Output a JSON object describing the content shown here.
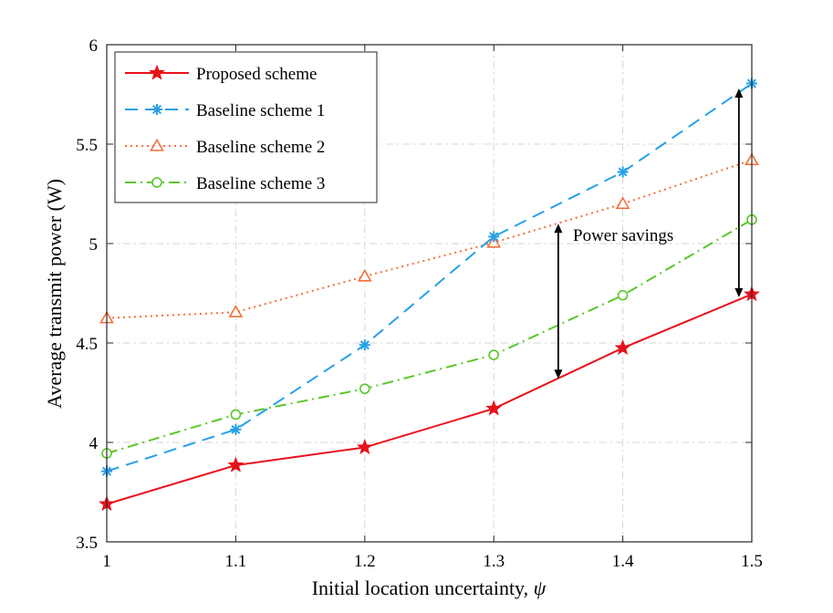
{
  "chart_data": {
    "type": "line",
    "title": "",
    "xlabel": "Initial location uncertainty, ",
    "xlabel_symbol": "ψ",
    "ylabel": "Average transmit power (W)",
    "x": [
      1,
      1.1,
      1.2,
      1.3,
      1.4,
      1.5
    ],
    "x_tick_labels": [
      "1",
      "1.1",
      "1.2",
      "1.3",
      "1.4",
      "1.5"
    ],
    "y_tick_labels": [
      "3.5",
      "4",
      "4.5",
      "5",
      "5.5",
      "6"
    ],
    "y_ticks": [
      3.5,
      4,
      4.5,
      5,
      5.5,
      6
    ],
    "xlim": [
      1,
      1.5
    ],
    "ylim": [
      3.5,
      6
    ],
    "grid": true,
    "legend_position": "top-left",
    "series": [
      {
        "name": "Proposed scheme",
        "values": [
          3.69,
          3.885,
          3.975,
          4.17,
          4.475,
          4.745
        ],
        "color": "#e8111a",
        "line": "solid",
        "marker": "star"
      },
      {
        "name": "Baseline scheme 1",
        "values": [
          3.855,
          4.065,
          4.49,
          5.035,
          5.36,
          5.805
        ],
        "color": "#26a0e8",
        "line": "dashed",
        "marker": "asterisk"
      },
      {
        "name": "Baseline scheme 2",
        "values": [
          4.625,
          4.655,
          4.835,
          5.005,
          5.2,
          5.42
        ],
        "color": "#f26f3c",
        "line": "dotted",
        "marker": "triangle"
      },
      {
        "name": "Baseline scheme 3",
        "values": [
          3.945,
          4.14,
          4.27,
          4.44,
          4.74,
          5.12
        ],
        "color": "#59c729",
        "line": "dashdot",
        "marker": "circle"
      }
    ],
    "annotations": [
      {
        "text": "Power savings",
        "arrows": [
          {
            "x": 1.35,
            "y_start": 4.32,
            "y_end": 5.1
          },
          {
            "x": 1.49,
            "y_start": 4.73,
            "y_end": 5.78
          }
        ]
      }
    ]
  }
}
